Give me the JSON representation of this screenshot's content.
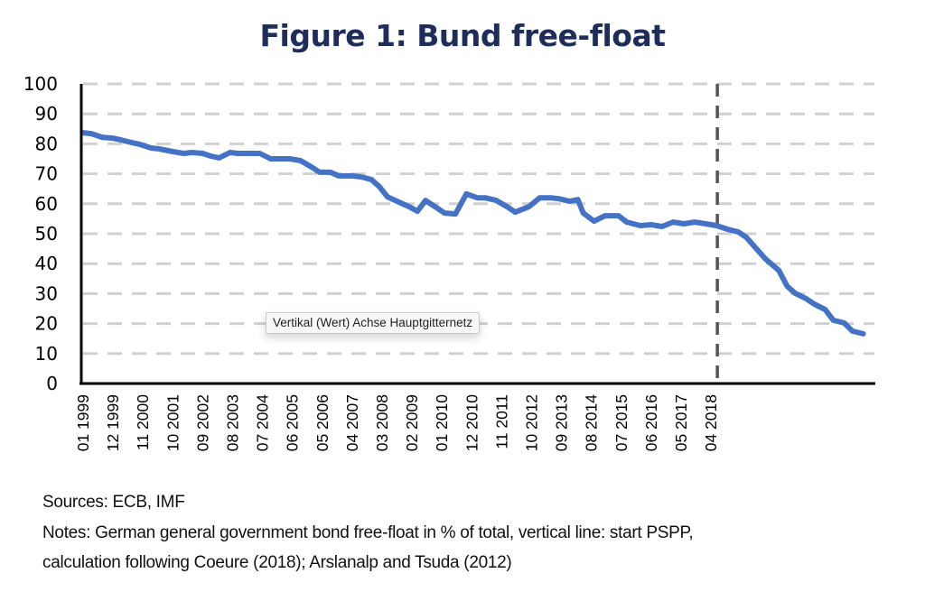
{
  "chart_data": {
    "type": "line",
    "title": "Figure 1: Bund free-float",
    "xlabel": "",
    "ylabel": "",
    "ylim": [
      0,
      100
    ],
    "yticks": [
      0,
      10,
      20,
      30,
      40,
      50,
      60,
      70,
      80,
      90,
      100
    ],
    "grid": "horizontal dashed",
    "x_tick_labels": [
      "01 1999",
      "12 1999",
      "11 2000",
      "10 2001",
      "09 2002",
      "08 2003",
      "07 2004",
      "06 2005",
      "05 2006",
      "04 2007",
      "03 2008",
      "02 2009",
      "01 2010",
      "12 2010",
      "11 2011",
      "10 2012",
      "09 2013",
      "08 2014",
      "07 2015",
      "06 2016",
      "05 2017",
      "04 2018"
    ],
    "x_start": "01 1999",
    "x_unit": "months since 01 1999",
    "series": [
      {
        "name": "Bund free-float (% of total)",
        "color": "#4472c4",
        "points": [
          [
            0,
            83.7
          ],
          [
            3,
            83.4
          ],
          [
            7,
            82.2
          ],
          [
            11,
            81.9
          ],
          [
            14,
            81.3
          ],
          [
            18,
            80.4
          ],
          [
            21,
            79.8
          ],
          [
            25,
            78.6
          ],
          [
            28,
            78.3
          ],
          [
            33,
            77.4
          ],
          [
            37,
            76.8
          ],
          [
            40,
            77.1
          ],
          [
            44,
            76.8
          ],
          [
            47,
            75.9
          ],
          [
            50,
            75.3
          ],
          [
            54,
            77.1
          ],
          [
            57,
            76.8
          ],
          [
            62,
            76.8
          ],
          [
            65,
            76.8
          ],
          [
            69,
            75.0
          ],
          [
            72,
            75.0
          ],
          [
            76,
            75.0
          ],
          [
            80,
            74.4
          ],
          [
            84,
            72.3
          ],
          [
            87,
            70.5
          ],
          [
            91,
            70.5
          ],
          [
            94,
            69.3
          ],
          [
            99,
            69.3
          ],
          [
            102,
            69.0
          ],
          [
            106,
            68.1
          ],
          [
            109,
            65.7
          ],
          [
            112,
            62.3
          ],
          [
            117,
            60.2
          ],
          [
            120,
            59.0
          ],
          [
            123,
            57.5
          ],
          [
            126,
            61.1
          ],
          [
            129,
            59.3
          ],
          [
            133,
            56.9
          ],
          [
            137,
            56.6
          ],
          [
            141,
            63.3
          ],
          [
            145,
            62.0
          ],
          [
            148,
            62.0
          ],
          [
            152,
            61.1
          ],
          [
            156,
            59.0
          ],
          [
            159,
            57.2
          ],
          [
            164,
            59.0
          ],
          [
            168,
            62.0
          ],
          [
            172,
            62.0
          ],
          [
            175,
            61.7
          ],
          [
            179,
            60.8
          ],
          [
            182,
            61.4
          ],
          [
            184,
            56.9
          ],
          [
            188,
            54.2
          ],
          [
            192,
            56.0
          ],
          [
            197,
            56.0
          ],
          [
            200,
            53.9
          ],
          [
            205,
            52.7
          ],
          [
            209,
            53.0
          ],
          [
            213,
            52.4
          ],
          [
            217,
            53.9
          ],
          [
            221,
            53.3
          ],
          [
            225,
            53.9
          ],
          [
            229,
            53.3
          ],
          [
            233,
            52.7
          ],
          [
            237,
            51.5
          ],
          [
            241,
            50.6
          ],
          [
            244,
            48.8
          ],
          [
            251,
            41.6
          ],
          [
            256,
            37.7
          ],
          [
            259,
            32.5
          ],
          [
            262,
            30.1
          ],
          [
            266,
            28.3
          ],
          [
            269,
            26.5
          ],
          [
            273,
            24.7
          ],
          [
            276,
            21.1
          ],
          [
            280,
            20.2
          ],
          [
            283,
            17.5
          ],
          [
            287,
            16.6
          ]
        ]
      }
    ],
    "annotations": [
      {
        "type": "vertical-dashed-line",
        "x": 233,
        "label": "start PSPP",
        "color": "#555555"
      }
    ]
  },
  "tooltip": {
    "text": "Vertikal (Wert) Achse Hauptgitternetz"
  },
  "footnotes": {
    "sources": "Sources:  ECB, IMF",
    "notes_line1": "Notes: German general government  bond free-float in % of total, vertical line: start PSPP,",
    "notes_line2": "calculation following Coeure (2018);  Arslanalp and Tsuda (2012)"
  },
  "colors": {
    "title": "#1f2d5a",
    "line": "#4472c4",
    "gridline": "#d0d0d0",
    "axis": "#000000",
    "pspp_line": "#555555"
  }
}
